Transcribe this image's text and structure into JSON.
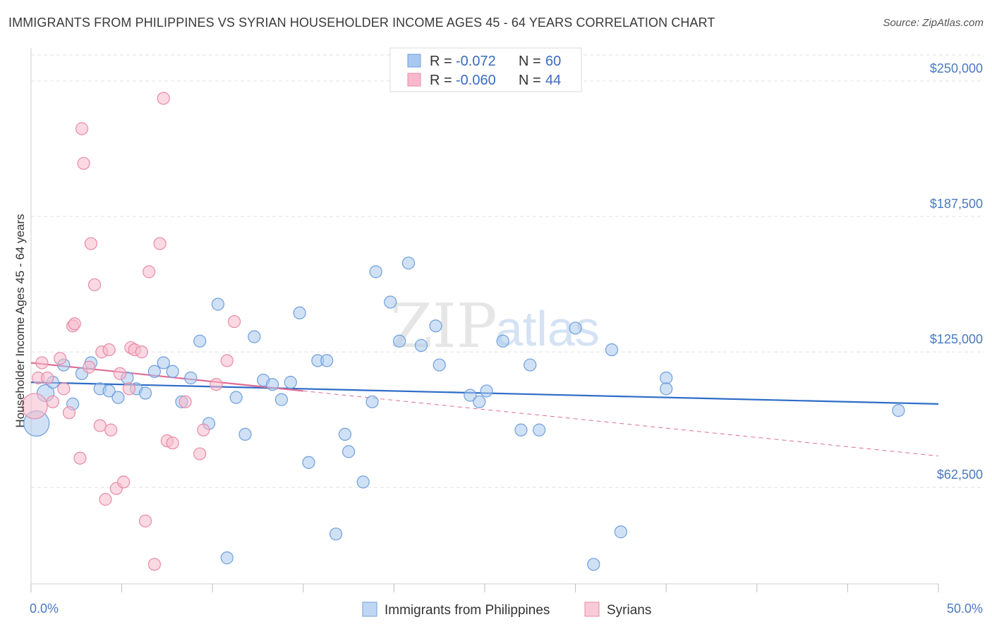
{
  "title": "IMMIGRANTS FROM PHILIPPINES VS SYRIAN HOUSEHOLDER INCOME AGES 45 - 64 YEARS CORRELATION CHART",
  "source": "Source: ZipAtlas.com",
  "watermark": {
    "zip": "ZIP",
    "atlas": "atlas"
  },
  "legend_top": [
    {
      "r_label": "R =",
      "r_value": "-0.072",
      "n_label": "N =",
      "n_value": "60",
      "color": "#a9c8ef",
      "stroke": "#6e9fdc"
    },
    {
      "r_label": "R =",
      "r_value": "-0.060",
      "n_label": "N =",
      "n_value": "44",
      "color": "#f7b9cb",
      "stroke": "#e88aa8"
    }
  ],
  "chart_data": {
    "type": "scatter",
    "xlabel": "",
    "ylabel": "Householder Income Ages 45 - 64 years",
    "xlim": [
      0,
      50
    ],
    "ylim": [
      18000,
      262000
    ],
    "x_tick_labels": [
      "0.0%",
      "50.0%"
    ],
    "y_ticks": [
      62500,
      125000,
      187500,
      250000
    ],
    "y_tick_labels": [
      "$62,500",
      "$125,000",
      "$187,500",
      "$250,000"
    ],
    "grid": true,
    "series": [
      {
        "name": "Immigrants from Philippines",
        "color": "#a9c8ef",
        "stroke": "#6e9fdc",
        "trend": {
          "x": [
            0,
            50
          ],
          "y": [
            111000,
            101000
          ],
          "color": "#2d6cc8"
        },
        "points": [
          [
            0.3,
            92000,
            3
          ],
          [
            0.8,
            106000,
            2
          ],
          [
            1.2,
            111000,
            1
          ],
          [
            1.8,
            119000,
            1
          ],
          [
            2.3,
            101000,
            1
          ],
          [
            2.8,
            115000,
            1
          ],
          [
            3.3,
            120000,
            1
          ],
          [
            3.8,
            108000,
            1
          ],
          [
            4.3,
            107000,
            1
          ],
          [
            4.8,
            104000,
            1
          ],
          [
            5.3,
            113000,
            1
          ],
          [
            5.8,
            108000,
            1
          ],
          [
            6.3,
            106000,
            1
          ],
          [
            6.8,
            116000,
            1
          ],
          [
            7.3,
            120000,
            1
          ],
          [
            7.8,
            116000,
            1
          ],
          [
            8.3,
            102000,
            1
          ],
          [
            8.8,
            113000,
            1
          ],
          [
            9.3,
            130000,
            1
          ],
          [
            9.8,
            92000,
            1
          ],
          [
            10.3,
            147000,
            1
          ],
          [
            10.8,
            30000,
            1
          ],
          [
            11.3,
            104000,
            1
          ],
          [
            11.8,
            87000,
            1
          ],
          [
            12.3,
            132000,
            1
          ],
          [
            12.8,
            112000,
            1
          ],
          [
            13.3,
            110000,
            1
          ],
          [
            13.8,
            103000,
            1
          ],
          [
            14.3,
            111000,
            1
          ],
          [
            14.8,
            143000,
            1
          ],
          [
            15.3,
            74000,
            1
          ],
          [
            15.8,
            121000,
            1
          ],
          [
            16.3,
            121000,
            1
          ],
          [
            16.8,
            41000,
            1
          ],
          [
            17.3,
            87000,
            1
          ],
          [
            17.5,
            79000,
            1
          ],
          [
            18.3,
            65000,
            1
          ],
          [
            18.8,
            102000,
            1
          ],
          [
            19.0,
            162000,
            1
          ],
          [
            19.8,
            148000,
            1
          ],
          [
            20.3,
            130000,
            1
          ],
          [
            20.8,
            166000,
            1
          ],
          [
            21.5,
            128000,
            1
          ],
          [
            22.3,
            137000,
            1
          ],
          [
            22.5,
            119000,
            1
          ],
          [
            24.2,
            105000,
            1
          ],
          [
            24.7,
            102000,
            1
          ],
          [
            25.1,
            107000,
            1
          ],
          [
            26.0,
            130000,
            1
          ],
          [
            27.0,
            89000,
            1
          ],
          [
            27.5,
            119000,
            1
          ],
          [
            28.0,
            89000,
            1
          ],
          [
            30.0,
            136000,
            1
          ],
          [
            31.0,
            27000,
            1
          ],
          [
            32.0,
            126000,
            1
          ],
          [
            32.5,
            42000,
            1
          ],
          [
            35.0,
            113000,
            1
          ],
          [
            35.0,
            108000,
            1
          ],
          [
            47.8,
            98000,
            1
          ]
        ]
      },
      {
        "name": "Syrians",
        "color": "#f7b9cb",
        "stroke": "#e88aa8",
        "trend": {
          "x": [
            0,
            15
          ],
          "y": [
            120000,
            107000
          ],
          "dash_to": [
            50,
            77000
          ],
          "color": "#e06b95"
        },
        "points": [
          [
            0.2,
            100000,
            3
          ],
          [
            0.4,
            113000,
            1
          ],
          [
            0.6,
            120000,
            1
          ],
          [
            0.9,
            113000,
            1
          ],
          [
            1.2,
            102000,
            1
          ],
          [
            1.6,
            122000,
            1
          ],
          [
            1.8,
            108000,
            1
          ],
          [
            2.1,
            97000,
            1
          ],
          [
            2.3,
            137000,
            1
          ],
          [
            2.4,
            138000,
            1
          ],
          [
            2.7,
            76000,
            1
          ],
          [
            2.8,
            228000,
            1
          ],
          [
            2.9,
            212000,
            1
          ],
          [
            3.2,
            118000,
            1
          ],
          [
            3.3,
            175000,
            1
          ],
          [
            3.5,
            156000,
            1
          ],
          [
            3.8,
            91000,
            1
          ],
          [
            3.9,
            125000,
            1
          ],
          [
            4.1,
            57000,
            1
          ],
          [
            4.3,
            126000,
            1
          ],
          [
            4.4,
            89000,
            1
          ],
          [
            4.7,
            62000,
            1
          ],
          [
            4.9,
            115000,
            1
          ],
          [
            5.1,
            65000,
            1
          ],
          [
            5.4,
            108000,
            1
          ],
          [
            5.5,
            127000,
            1
          ],
          [
            5.7,
            126000,
            1
          ],
          [
            6.1,
            125000,
            1
          ],
          [
            6.3,
            47000,
            1
          ],
          [
            6.5,
            162000,
            1
          ],
          [
            6.8,
            27000,
            1
          ],
          [
            7.1,
            175000,
            1
          ],
          [
            7.3,
            242000,
            1
          ],
          [
            7.5,
            84000,
            1
          ],
          [
            7.8,
            83000,
            1
          ],
          [
            8.5,
            102000,
            1
          ],
          [
            9.3,
            78000,
            1
          ],
          [
            9.5,
            89000,
            1
          ],
          [
            10.2,
            110000,
            1
          ],
          [
            11.2,
            139000,
            1
          ],
          [
            10.8,
            121000,
            1
          ]
        ]
      }
    ]
  },
  "legend_bottom": [
    {
      "label": "Immigrants from Philippines",
      "color": "#a9c8ef",
      "stroke": "#6e9fdc"
    },
    {
      "label": "Syrians",
      "color": "#f7b9cb",
      "stroke": "#e88aa8"
    }
  ]
}
